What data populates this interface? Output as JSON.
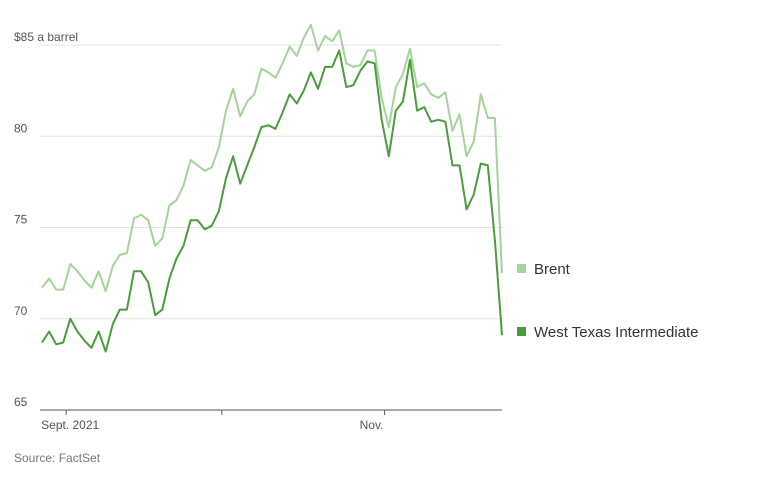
{
  "chart_data": {
    "type": "line",
    "title": "",
    "xlabel": "",
    "ylabel": "",
    "ylim": [
      65,
      86
    ],
    "y_ticks": [
      {
        "value": 85,
        "label": "$85 a barrel"
      },
      {
        "value": 80,
        "label": "80"
      },
      {
        "value": 75,
        "label": "75"
      },
      {
        "value": 70,
        "label": "70"
      },
      {
        "value": 65,
        "label": "65"
      }
    ],
    "x_ticks": [
      {
        "index": 2,
        "label": "Sept. 2021"
      },
      {
        "index": 24,
        "label": ""
      },
      {
        "index": 47,
        "label": "Nov."
      }
    ],
    "grid": true,
    "legend_position": "right",
    "series": [
      {
        "name": "Brent",
        "color": "#a3d49a",
        "values": [
          71.7,
          72.2,
          71.6,
          71.6,
          73.0,
          72.6,
          72.1,
          71.7,
          72.6,
          71.5,
          72.9,
          73.5,
          73.6,
          75.5,
          75.7,
          75.4,
          74.0,
          74.4,
          76.2,
          76.5,
          77.3,
          78.7,
          78.4,
          78.1,
          78.3,
          79.4,
          81.4,
          82.6,
          81.1,
          81.9,
          82.3,
          83.7,
          83.5,
          83.2,
          84.0,
          84.9,
          84.4,
          85.4,
          86.1,
          84.7,
          85.5,
          85.2,
          85.8,
          84.0,
          83.8,
          83.9,
          84.7,
          84.7,
          82.1,
          80.5,
          82.7,
          83.4,
          84.8,
          82.7,
          82.9,
          82.3,
          82.1,
          82.4,
          80.3,
          81.2,
          78.9,
          79.7,
          82.3,
          81.0,
          81.0,
          72.5
        ]
      },
      {
        "name": "West Texas Intermediate",
        "color": "#4a9c3d",
        "values": [
          68.7,
          69.3,
          68.6,
          68.7,
          70.0,
          69.3,
          68.8,
          68.4,
          69.3,
          68.2,
          69.7,
          70.5,
          70.5,
          72.6,
          72.6,
          72.0,
          70.2,
          70.5,
          72.2,
          73.3,
          74.0,
          75.4,
          75.4,
          74.9,
          75.1,
          75.9,
          77.7,
          78.9,
          77.4,
          78.4,
          79.4,
          80.5,
          80.6,
          80.4,
          81.3,
          82.3,
          81.8,
          82.5,
          83.5,
          82.6,
          83.8,
          83.8,
          84.7,
          82.7,
          82.8,
          83.6,
          84.1,
          84.0,
          80.9,
          78.9,
          81.4,
          81.9,
          84.2,
          81.4,
          81.6,
          80.8,
          80.9,
          80.8,
          78.4,
          78.4,
          76.0,
          76.8,
          78.5,
          78.4,
          74.3,
          69.1
        ]
      }
    ]
  },
  "source": "Source: FactSet"
}
